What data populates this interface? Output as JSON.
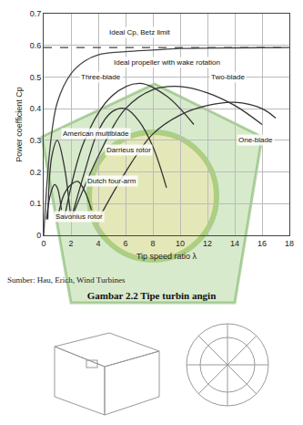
{
  "chart_data": {
    "type": "line",
    "x_label": "Tip speed ratio λ",
    "y_label": "Power coefficient Cp",
    "xlim": [
      0,
      18
    ],
    "xticks": [
      0,
      2,
      4,
      6,
      8,
      10,
      12,
      14,
      16,
      18
    ],
    "ylim": [
      0,
      0.7
    ],
    "yticks": [
      0,
      0.1,
      0.2,
      0.3,
      0.4,
      0.5,
      0.6,
      0.7
    ],
    "grid": true,
    "series": [
      {
        "color": "#444444",
        "line_style": "dash",
        "x": [
          0,
          18
        ],
        "values": [
          0.593,
          0.593
        ]
      },
      {
        "color": "#444444",
        "line_style": "solid",
        "x": [
          0,
          0.5,
          1,
          2,
          3,
          4,
          6,
          8,
          10,
          14,
          18
        ],
        "values": [
          0,
          0.29,
          0.42,
          0.51,
          0.55,
          0.57,
          0.58,
          0.585,
          0.59,
          0.592,
          0.593
        ]
      },
      {
        "color": "#333333",
        "line_style": "solid",
        "x": [
          2,
          4,
          6,
          8,
          10,
          12,
          14,
          16
        ],
        "values": [
          0.05,
          0.25,
          0.4,
          0.46,
          0.47,
          0.45,
          0.41,
          0.35
        ]
      },
      {
        "color": "#333333",
        "line_style": "solid",
        "x": [
          1.5,
          3,
          5,
          7,
          9,
          11
        ],
        "values": [
          0.05,
          0.3,
          0.44,
          0.48,
          0.44,
          0.35
        ]
      },
      {
        "color": "#333333",
        "line_style": "solid",
        "x": [
          4,
          6,
          8,
          10,
          12,
          14,
          16,
          17
        ],
        "values": [
          0.05,
          0.2,
          0.32,
          0.38,
          0.41,
          0.42,
          0.4,
          0.37
        ]
      },
      {
        "color": "#333333",
        "line_style": "solid",
        "x": [
          2,
          3,
          4,
          5,
          6,
          7,
          8,
          9
        ],
        "values": [
          0.05,
          0.2,
          0.33,
          0.39,
          0.4,
          0.36,
          0.28,
          0.15
        ]
      },
      {
        "color": "#333333",
        "line_style": "solid",
        "x": [
          0.3,
          0.6,
          1,
          1.5,
          2
        ],
        "values": [
          0.05,
          0.25,
          0.3,
          0.22,
          0.05
        ]
      },
      {
        "color": "#333333",
        "line_style": "solid",
        "x": [
          0.2,
          0.5,
          0.8,
          1,
          1.3
        ],
        "values": [
          0.05,
          0.13,
          0.16,
          0.15,
          0.08
        ]
      },
      {
        "color": "#333333",
        "line_style": "solid",
        "x": [
          1,
          1.5,
          2,
          2.5,
          3,
          3.5
        ],
        "values": [
          0.05,
          0.13,
          0.16,
          0.17,
          0.14,
          0.08
        ]
      }
    ],
    "annotations": [
      {
        "text": "Ideal Cp, Betz limit",
        "x": 7,
        "y": 0.64
      },
      {
        "text": "Ideal propeller with wake rotation",
        "x": 9,
        "y": 0.545
      },
      {
        "text": "Two-blade",
        "x": 13.5,
        "y": 0.5
      },
      {
        "text": "Three-blade",
        "x": 4.2,
        "y": 0.5
      },
      {
        "text": "One-blade",
        "x": 15.5,
        "y": 0.3
      },
      {
        "text": "Darrieus rotor",
        "x": 6.2,
        "y": 0.27
      },
      {
        "text": "American multiblade",
        "x": 3.8,
        "y": 0.32
      },
      {
        "text": "Savonius rotor",
        "x": 2.6,
        "y": 0.06
      },
      {
        "text": "Dutch four-arm",
        "x": 5,
        "y": 0.17
      }
    ]
  },
  "caption": {
    "source": "Sumber: Hau, Erich, Wind Turbines",
    "title": "Gambar 2.2 Tipe turbin angin"
  }
}
